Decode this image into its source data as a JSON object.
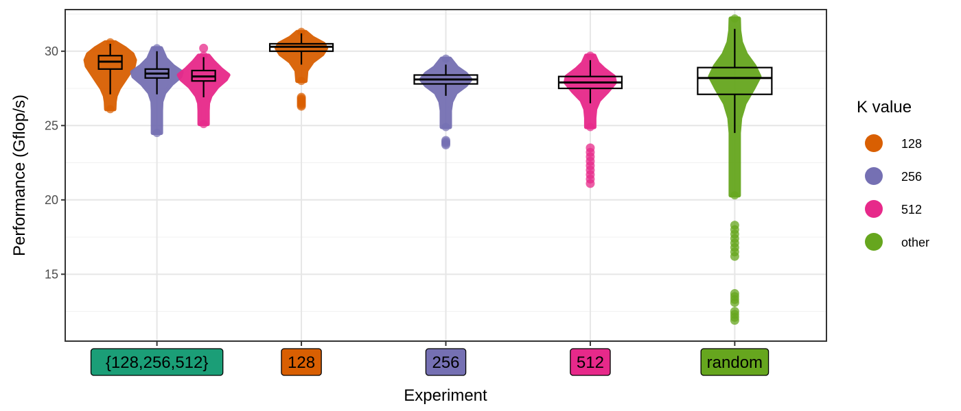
{
  "chart_data": {
    "type": "violin-box",
    "xlabel": "Experiment",
    "ylabel": "Performance (Gflop/s)",
    "ylim": [
      10.5,
      32.8
    ],
    "yticks": [
      15,
      20,
      25,
      30
    ],
    "grid": true,
    "categories": [
      {
        "label": "{128,256,512}",
        "color": "#1b9e77"
      },
      {
        "label": "128",
        "color": "#d95f02"
      },
      {
        "label": "256",
        "color": "#7570b3"
      },
      {
        "label": "512",
        "color": "#e7298a"
      },
      {
        "label": "random",
        "color": "#66a61e"
      }
    ],
    "legend": {
      "title": "K value",
      "position": "right",
      "items": [
        {
          "label": "128",
          "color": "#d95f02"
        },
        {
          "label": "256",
          "color": "#7570b3"
        },
        {
          "label": "512",
          "color": "#e7298a"
        },
        {
          "label": "other",
          "color": "#66a61e"
        }
      ]
    },
    "series": [
      {
        "category": 0,
        "k": "128",
        "color": "#d95f02",
        "min": 26.1,
        "q1": 28.8,
        "median": 29.3,
        "q3": 29.7,
        "max": 30.6,
        "wlo": 27.1,
        "whi": 30.5,
        "body_lo": 27.0,
        "profile": [
          [
            26.1,
            0.12
          ],
          [
            26.6,
            0.18
          ],
          [
            27.0,
            0.22
          ],
          [
            27.5,
            0.35
          ],
          [
            28.0,
            0.55
          ],
          [
            28.5,
            0.75
          ],
          [
            29.0,
            0.95
          ],
          [
            29.4,
            1.0
          ],
          [
            29.8,
            0.9
          ],
          [
            30.2,
            0.6
          ],
          [
            30.6,
            0.2
          ]
        ],
        "outliers": []
      },
      {
        "category": 0,
        "k": "256",
        "color": "#7570b3",
        "min": 24.5,
        "q1": 28.2,
        "median": 28.5,
        "q3": 28.8,
        "max": 30.2,
        "wlo": 27.1,
        "whi": 30.0,
        "body_lo": 27.3,
        "profile": [
          [
            24.5,
            0.12
          ],
          [
            25.0,
            0.12
          ],
          [
            25.5,
            0.14
          ],
          [
            26.0,
            0.15
          ],
          [
            26.6,
            0.18
          ],
          [
            27.2,
            0.3
          ],
          [
            27.8,
            0.6
          ],
          [
            28.3,
            0.95
          ],
          [
            28.6,
            1.0
          ],
          [
            29.0,
            0.65
          ],
          [
            29.5,
            0.35
          ],
          [
            30.2,
            0.15
          ]
        ],
        "outliers": []
      },
      {
        "category": 0,
        "k": "512",
        "color": "#e7298a",
        "min": 25.1,
        "q1": 28.0,
        "median": 28.3,
        "q3": 28.7,
        "max": 30.2,
        "wlo": 26.9,
        "whi": 29.6,
        "body_lo": 27.0,
        "profile": [
          [
            25.1,
            0.12
          ],
          [
            25.5,
            0.12
          ],
          [
            26.0,
            0.14
          ],
          [
            26.5,
            0.18
          ],
          [
            27.0,
            0.28
          ],
          [
            27.6,
            0.55
          ],
          [
            28.1,
            0.9
          ],
          [
            28.4,
            1.0
          ],
          [
            28.8,
            0.7
          ],
          [
            29.3,
            0.4
          ],
          [
            29.7,
            0.2
          ]
        ],
        "outliers": [
          30.2
        ]
      },
      {
        "category": 1,
        "k": "128",
        "color": "#d95f02",
        "min": 26.2,
        "q1": 30.0,
        "median": 30.3,
        "q3": 30.5,
        "max": 31.3,
        "wlo": 29.1,
        "whi": 31.2,
        "body_lo": 28.0,
        "profile": [
          [
            28.0,
            0.12
          ],
          [
            28.7,
            0.2
          ],
          [
            29.3,
            0.45
          ],
          [
            29.8,
            0.85
          ],
          [
            30.2,
            1.0
          ],
          [
            30.5,
            0.9
          ],
          [
            30.9,
            0.45
          ],
          [
            31.3,
            0.15
          ]
        ],
        "outliers": [
          26.3,
          26.4,
          26.5,
          26.6,
          26.7,
          26.8,
          26.9
        ]
      },
      {
        "category": 2,
        "k": "256",
        "color": "#7570b3",
        "min": 23.7,
        "q1": 27.8,
        "median": 28.1,
        "q3": 28.4,
        "max": 29.5,
        "wlo": 27.0,
        "whi": 29.1,
        "body_lo": 26.5,
        "profile": [
          [
            24.9,
            0.12
          ],
          [
            25.4,
            0.13
          ],
          [
            26.0,
            0.15
          ],
          [
            26.6,
            0.22
          ],
          [
            27.2,
            0.4
          ],
          [
            27.7,
            0.8
          ],
          [
            28.1,
            1.0
          ],
          [
            28.5,
            0.8
          ],
          [
            28.9,
            0.45
          ],
          [
            29.5,
            0.15
          ]
        ],
        "outliers": [
          23.7,
          23.8,
          23.9,
          24.0
        ]
      },
      {
        "category": 3,
        "k": "512",
        "color": "#e7298a",
        "min": 21.1,
        "q1": 27.5,
        "median": 27.9,
        "q3": 28.3,
        "max": 29.7,
        "wlo": 26.5,
        "whi": 29.4,
        "body_lo": 26.0,
        "profile": [
          [
            24.9,
            0.12
          ],
          [
            25.5,
            0.13
          ],
          [
            26.1,
            0.2
          ],
          [
            26.7,
            0.35
          ],
          [
            27.3,
            0.7
          ],
          [
            27.9,
            1.0
          ],
          [
            28.3,
            0.95
          ],
          [
            28.8,
            0.55
          ],
          [
            29.2,
            0.3
          ],
          [
            29.7,
            0.12
          ]
        ],
        "outliers": [
          21.1,
          21.4,
          21.7,
          22.0,
          22.3,
          22.6,
          22.9,
          23.2,
          23.5
        ]
      },
      {
        "category": 4,
        "k": "other",
        "color": "#66a61e",
        "min": 11.9,
        "q1": 27.1,
        "median": 28.2,
        "q3": 28.9,
        "max": 32.2,
        "wlo": 24.5,
        "whi": 31.5,
        "body_lo": 20.3,
        "profile": [
          [
            20.3,
            0.11
          ],
          [
            22.0,
            0.12
          ],
          [
            23.5,
            0.14
          ],
          [
            24.5,
            0.16
          ],
          [
            25.5,
            0.22
          ],
          [
            26.5,
            0.4
          ],
          [
            27.5,
            0.75
          ],
          [
            28.3,
            1.0
          ],
          [
            29.0,
            0.8
          ],
          [
            29.8,
            0.45
          ],
          [
            30.6,
            0.25
          ],
          [
            31.4,
            0.18
          ],
          [
            32.2,
            0.12
          ]
        ],
        "outliers": [
          11.9,
          12.1,
          12.3,
          12.5,
          13.1,
          13.3,
          13.5,
          13.7,
          16.2,
          16.5,
          16.8,
          17.1,
          17.4,
          17.7,
          18.0,
          18.3
        ]
      }
    ]
  }
}
